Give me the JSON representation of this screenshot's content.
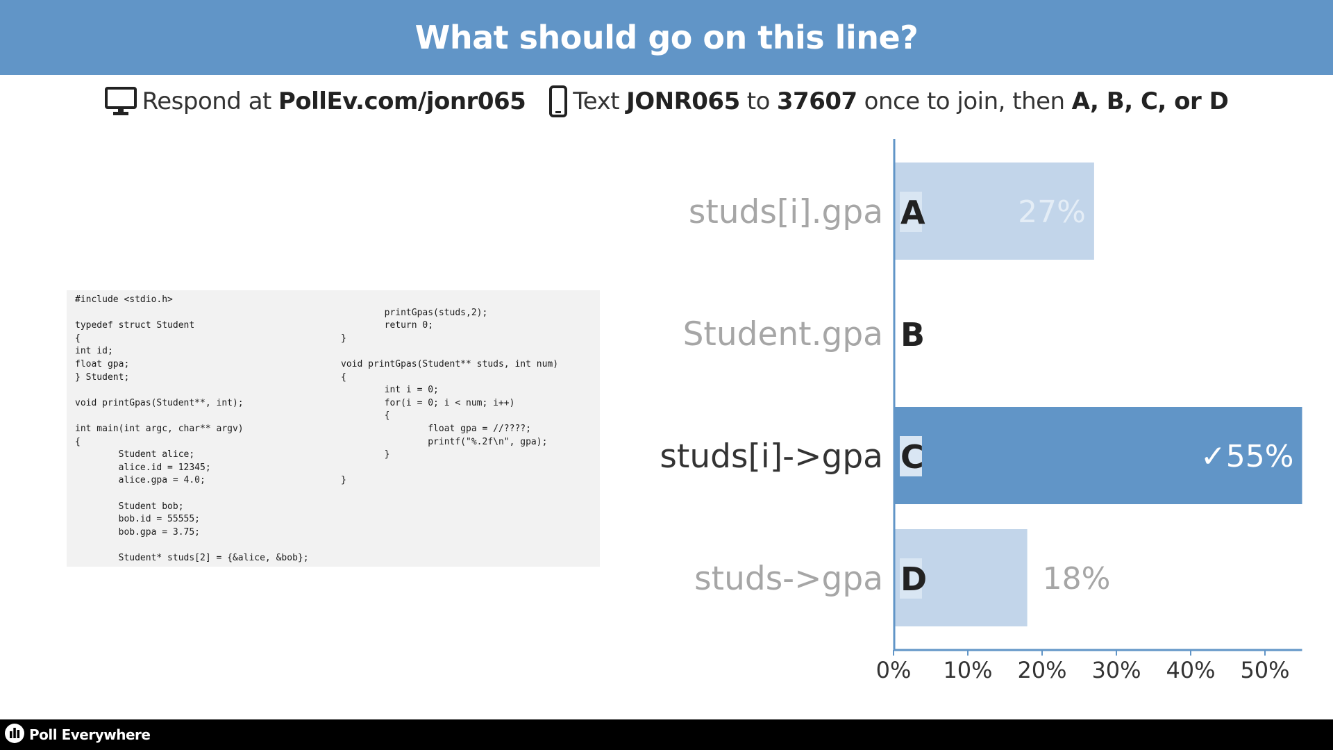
{
  "header": {
    "title": "What should go on this line?"
  },
  "instructions": {
    "icon_web": "monitor-icon",
    "respond_prefix": "Respond at",
    "respond_url": "PollEv.com/jonr065",
    "icon_text": "phone-icon",
    "text_prefix": "Text",
    "keyword": "JONR065",
    "to_word": "to",
    "number": "37607",
    "join_text": "once to join, then",
    "options_text": "A, B, C, or D"
  },
  "code": {
    "left_lines": [
      "#include <stdio.h>",
      "",
      "typedef struct Student",
      "{",
      "int id;",
      "float gpa;",
      "} Student;",
      "",
      "void printGpas(Student**, int);",
      "",
      "int main(int argc, char** argv)",
      "{",
      "        Student alice;",
      "        alice.id = 12345;",
      "        alice.gpa = 4.0;",
      "",
      "        Student bob;",
      "        bob.id = 55555;",
      "        bob.gpa = 3.75;",
      "",
      "        Student* studs[2] = {&alice, &bob};"
    ],
    "right_lines": [
      "",
      "        printGpas(studs,2);",
      "        return 0;",
      "}",
      "",
      "void printGpas(Student** studs, int num)",
      "{",
      "        int i = 0;",
      "        for(i = 0; i < num; i++)",
      "        {",
      "                float gpa = //????;",
      "                printf(\"%.2f\\n\", gpa);",
      "        }",
      "",
      "}"
    ]
  },
  "chart_data": {
    "type": "bar",
    "orientation": "horizontal",
    "categories": [
      "studs[i].gpa",
      "Student.gpa",
      "studs[i]->gpa",
      "studs->gpa"
    ],
    "letters": [
      "A",
      "B",
      "C",
      "D"
    ],
    "values": [
      27,
      0,
      55,
      18
    ],
    "value_labels": [
      "27%",
      "",
      "✓55%",
      "18%"
    ],
    "correct_index": 2,
    "xticks": [
      0,
      10,
      20,
      30,
      40,
      50
    ],
    "xtick_labels": [
      "0%",
      "10%",
      "20%",
      "30%",
      "40%",
      "50%"
    ],
    "xlim": [
      0,
      55
    ],
    "colors": {
      "bar": "#c2d5ea",
      "correct": "#6195c7",
      "axis": "#6195c7",
      "label_muted": "#a6a6a6",
      "label_active": "#333333"
    }
  },
  "footer": {
    "icon": "poll-everywhere-logo-icon",
    "brand": "Poll Everywhere"
  }
}
